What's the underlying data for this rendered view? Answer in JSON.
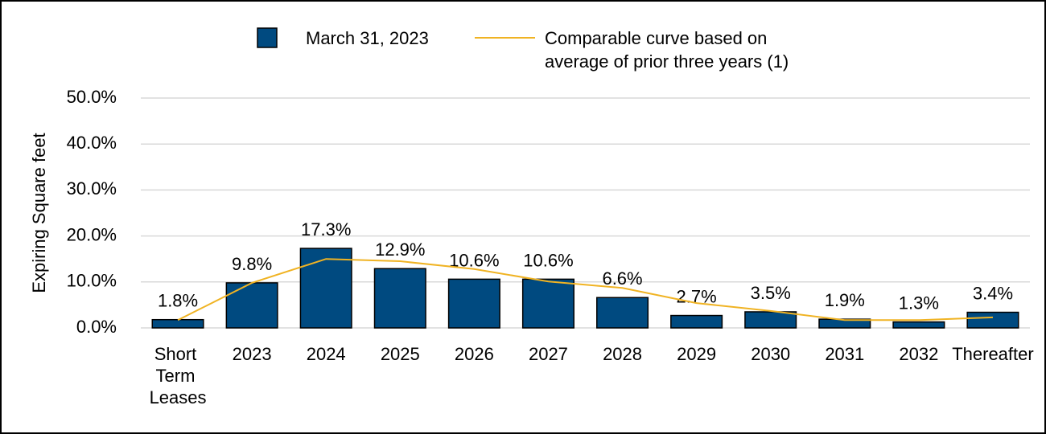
{
  "chart_data": {
    "type": "bar",
    "y_label": "Expiring Square feet",
    "categories": [
      "Short Term Leases",
      "2023",
      "2024",
      "2025",
      "2026",
      "2027",
      "2028",
      "2029",
      "2030",
      "2031",
      "2032",
      "Thereafter"
    ],
    "series": [
      {
        "name": "March 31, 2023",
        "type": "bar",
        "color": "#004a80",
        "values": [
          1.8,
          9.8,
          17.3,
          12.9,
          10.6,
          10.6,
          6.6,
          2.7,
          3.5,
          1.9,
          1.3,
          3.4
        ],
        "value_labels": [
          "1.8%",
          "9.8%",
          "17.3%",
          "12.9%",
          "10.6%",
          "10.6%",
          "6.6%",
          "2.7%",
          "3.5%",
          "1.9%",
          "1.3%",
          "3.4%"
        ]
      },
      {
        "name": "Comparable curve based on average of prior three years (1)",
        "type": "line",
        "color": "#f0b323",
        "values": [
          1.7,
          9.8,
          15.0,
          14.5,
          12.8,
          10.1,
          8.7,
          5.4,
          3.7,
          1.7,
          1.7,
          2.3
        ]
      }
    ],
    "ylim": [
      0,
      50
    ],
    "yticks": [
      {
        "value": 0,
        "label": "0.0%"
      },
      {
        "value": 10,
        "label": "10.0%"
      },
      {
        "value": 20,
        "label": "20.0%"
      },
      {
        "value": 30,
        "label": "30.0%"
      },
      {
        "value": 40,
        "label": "40.0%"
      },
      {
        "value": 50,
        "label": "50.0%"
      }
    ],
    "grid": true
  }
}
